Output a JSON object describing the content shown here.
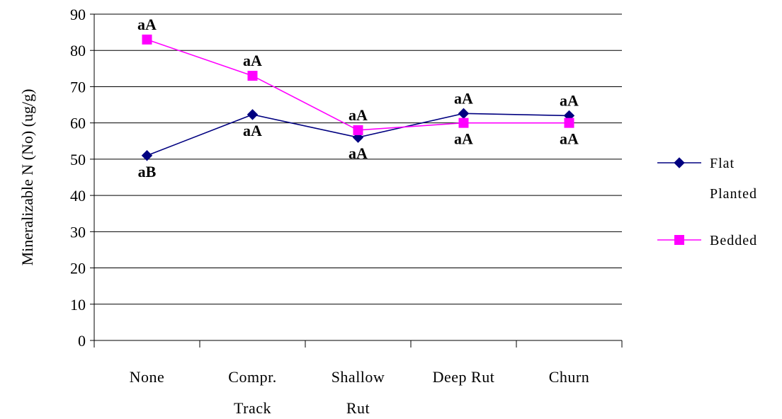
{
  "chart_data": {
    "type": "line",
    "title": "",
    "ylabel": "Mineralizable N (No) (ug/g)",
    "xlabel": "",
    "ylim": [
      0,
      90
    ],
    "yticks": [
      0,
      10,
      20,
      30,
      40,
      50,
      60,
      70,
      80,
      90
    ],
    "grid": true,
    "legend_position": "right",
    "categories": [
      [
        "None"
      ],
      [
        "Compr.",
        "Track"
      ],
      [
        "Shallow",
        "Rut"
      ],
      [
        "Deep Rut"
      ],
      [
        "Churn"
      ]
    ],
    "series": [
      {
        "name": [
          "Flat",
          "Planted"
        ],
        "color": "#000080",
        "marker": "diamond",
        "values": [
          51,
          62.3,
          56,
          62.6,
          62
        ],
        "annotations": [
          "aB",
          "aA",
          "aA",
          "aA",
          "aA"
        ]
      },
      {
        "name": [
          "Bedded"
        ],
        "color": "#FF00FF",
        "marker": "square",
        "values": [
          83,
          73,
          58,
          60,
          60
        ],
        "annotations": [
          "aA",
          "aA",
          "aA",
          "aA",
          "aA"
        ]
      }
    ]
  }
}
